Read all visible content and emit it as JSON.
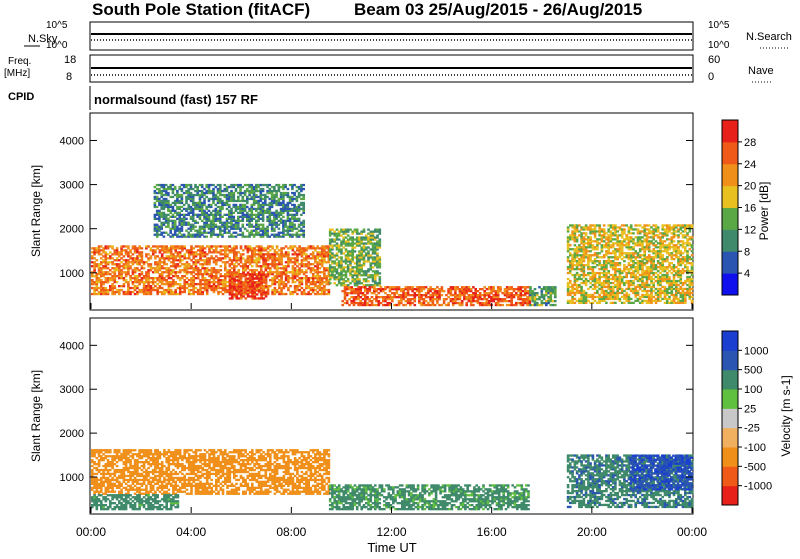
{
  "title": {
    "station": "South Pole Station (fitACF)",
    "beam_date": "Beam 03 25/Aug/2015 - 26/Aug/2015"
  },
  "top_strip": {
    "nsky_label": "N.Sky",
    "nsearch_label": "N.Search",
    "noise_ticks": [
      "10^5",
      "10^0"
    ],
    "freq_label": "Freq.",
    "freq_unit": "[MHz]",
    "freq_ticks": [
      "18",
      "8"
    ],
    "nave_label": "Nave",
    "nave_ticks": [
      "60",
      "0"
    ],
    "cpid_label": "CPID",
    "cpid_text": "normalsound (fast) 157 RF"
  },
  "time_axis": {
    "ticks": [
      "00:00",
      "04:00",
      "08:00",
      "12:00",
      "16:00",
      "20:00",
      "00:00"
    ],
    "label": "Time UT"
  },
  "colors": {
    "power": [
      "#1010ee",
      "#2a55b0",
      "#3f8a6a",
      "#5aa845",
      "#e8c020",
      "#f0901a",
      "#f05a18",
      "#e8201a"
    ],
    "velocity": [
      "#e8201a",
      "#f05a18",
      "#f0901a",
      "#f0b060",
      "#c8c8c8",
      "#5fbf3e",
      "#3f8a6a",
      "#2a55b0",
      "#1a3ed0"
    ]
  },
  "chart_data": [
    {
      "type": "heatmap",
      "panel": "power",
      "ylabel": "Slant Range [km]",
      "xlabel": "",
      "x_range_hours": [
        0,
        24
      ],
      "ylim": [
        180,
        4600
      ],
      "yticks": [
        1000,
        2000,
        3000,
        4000
      ],
      "colorbar": {
        "label": "Power [dB]",
        "ticks": [
          "4",
          "8",
          "12",
          "16",
          "20",
          "24",
          "28"
        ],
        "range": [
          0,
          32
        ]
      },
      "regions": [
        {
          "t": [
            0.0,
            9.5
          ],
          "r": [
            500,
            1600
          ],
          "value": 24
        },
        {
          "t": [
            2.5,
            8.5
          ],
          "r": [
            1800,
            3000
          ],
          "value": 10
        },
        {
          "t": [
            5.5,
            7.0
          ],
          "r": [
            400,
            1000
          ],
          "value": 28
        },
        {
          "t": [
            9.5,
            11.5
          ],
          "r": [
            700,
            2000
          ],
          "value": 14
        },
        {
          "t": [
            10.0,
            17.5
          ],
          "r": [
            250,
            700
          ],
          "value": 26
        },
        {
          "t": [
            17.5,
            18.5
          ],
          "r": [
            250,
            700
          ],
          "value": 12
        },
        {
          "t": [
            19.0,
            24.0
          ],
          "r": [
            300,
            2100
          ],
          "value": 18
        }
      ]
    },
    {
      "type": "heatmap",
      "panel": "velocity",
      "ylabel": "Slant Range [km]",
      "xlabel": "Time UT",
      "x_range_hours": [
        0,
        24
      ],
      "ylim": [
        180,
        4600
      ],
      "yticks": [
        1000,
        2000,
        3000,
        4000
      ],
      "colorbar": {
        "label": "Velocity [m s-1]",
        "ticks": [
          "1000",
          "500",
          "100",
          "25",
          "-25",
          "-100",
          "-500",
          "-1000"
        ],
        "range": [
          -1000,
          1000
        ]
      },
      "regions": [
        {
          "t": [
            0.0,
            9.5
          ],
          "r": [
            600,
            1600
          ],
          "value": -300
        },
        {
          "t": [
            0.0,
            3.5
          ],
          "r": [
            250,
            600
          ],
          "value": 200
        },
        {
          "t": [
            9.5,
            17.5
          ],
          "r": [
            250,
            800
          ],
          "value": 150
        },
        {
          "t": [
            19.0,
            24.0
          ],
          "r": [
            300,
            1500
          ],
          "value": 400
        },
        {
          "t": [
            21.5,
            24.0
          ],
          "r": [
            700,
            1500
          ],
          "value": 900
        }
      ]
    }
  ]
}
